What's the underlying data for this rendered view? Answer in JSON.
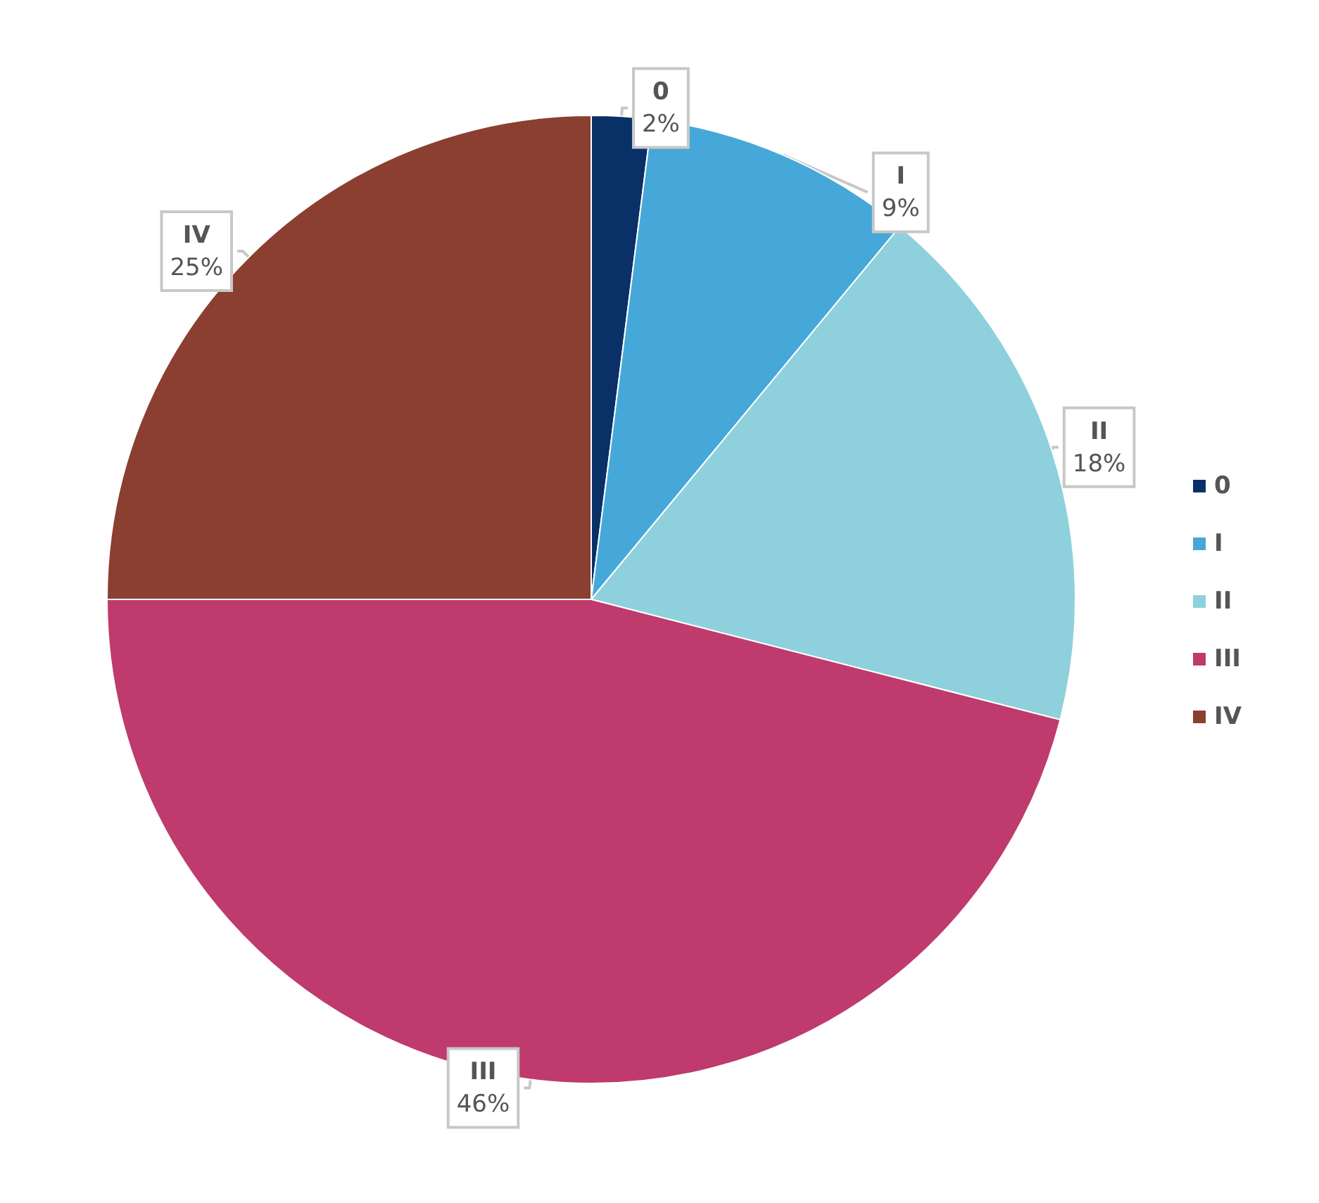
{
  "chart_data": {
    "type": "pie",
    "categories": [
      "0",
      "I",
      "II",
      "III",
      "IV"
    ],
    "values": [
      2,
      9,
      18,
      46,
      25
    ],
    "value_labels": [
      "2%",
      "9%",
      "18%",
      "46%",
      "25%"
    ],
    "colors": [
      "#0a3068",
      "#46a8d8",
      "#8ed1dc",
      "#bf3a6d",
      "#8b3f30"
    ],
    "legend": "right"
  }
}
